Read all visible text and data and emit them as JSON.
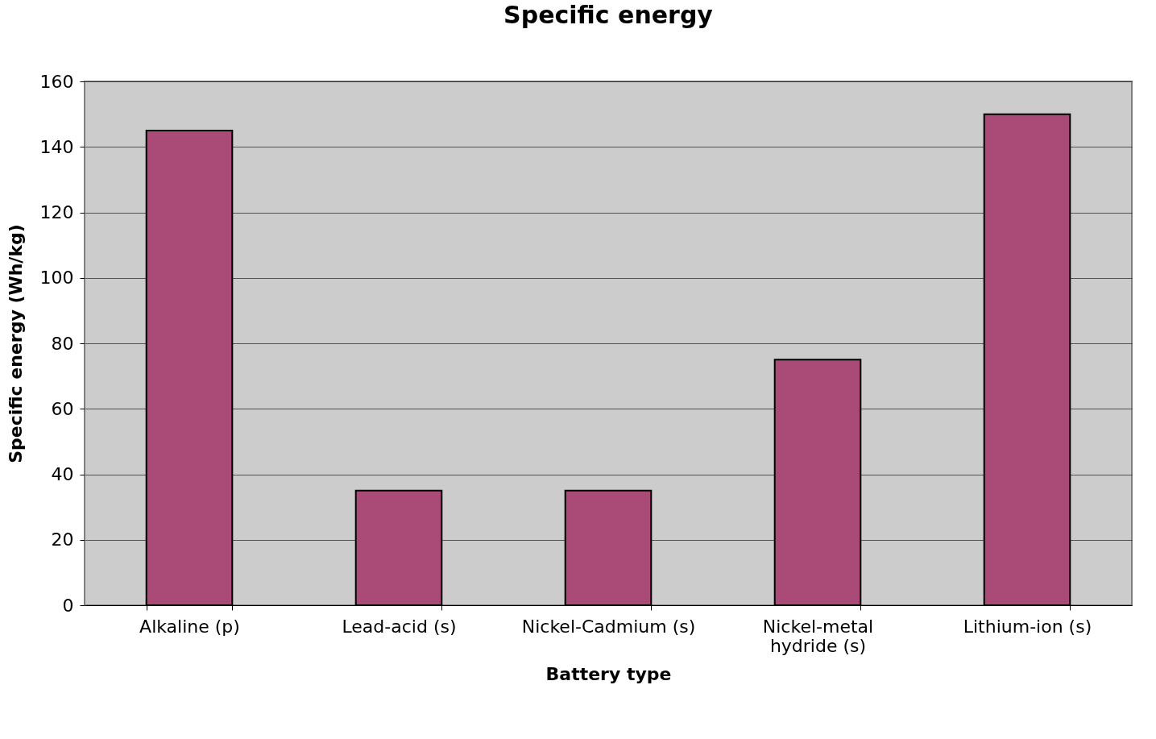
{
  "chart_data": {
    "type": "bar",
    "title": "Specific energy",
    "xlabel": "Battery type",
    "ylabel": "Specific energy (Wh/kg)",
    "categories": [
      "Alkaline (p)",
      "Lead-acid (s)",
      "Nickel-Cadmium (s)",
      "Nickel-metal hydride (s)",
      "Lithium-ion (s)"
    ],
    "values": [
      145,
      35,
      35,
      75,
      150
    ],
    "color": "#aa4a77",
    "ylim": [
      0,
      160
    ],
    "yticks": [
      0,
      20,
      40,
      60,
      80,
      100,
      120,
      140,
      160
    ],
    "grid": "y"
  }
}
